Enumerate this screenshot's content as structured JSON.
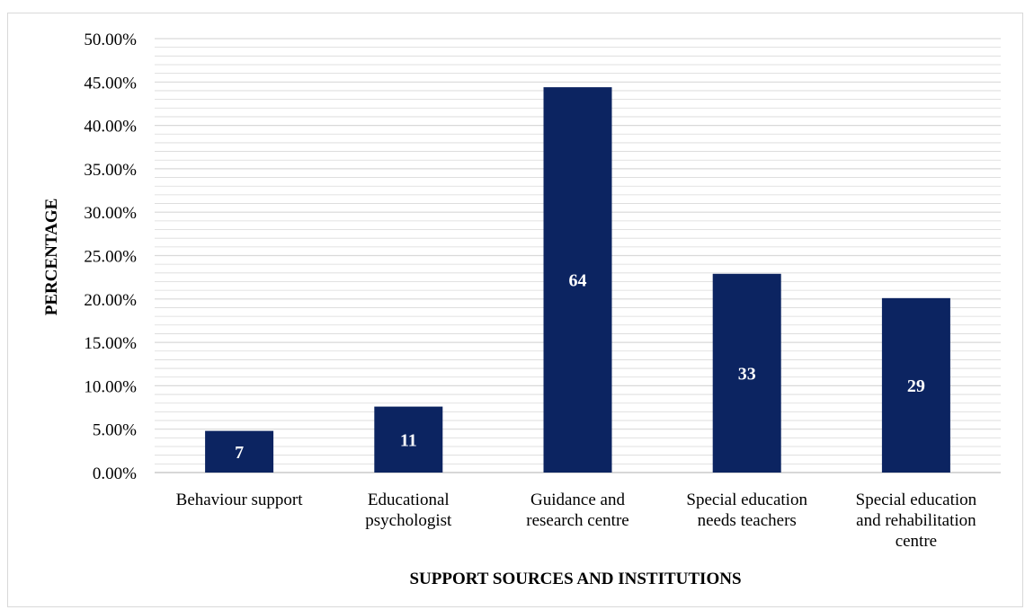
{
  "chart_data": {
    "type": "bar",
    "categories": [
      "Behaviour support",
      "Educational psychologist",
      "Guidance and research centre",
      "Special education needs teachers",
      "Special education and rehabilitation centre"
    ],
    "category_lines": [
      [
        "Behaviour support"
      ],
      [
        "Educational",
        "psychologist"
      ],
      [
        "Guidance and",
        "research centre"
      ],
      [
        "Special education",
        "needs teachers"
      ],
      [
        "Special education",
        "and rehabilitation",
        "centre"
      ]
    ],
    "values": [
      4.8,
      7.6,
      44.4,
      22.9,
      20.1
    ],
    "data_labels": [
      "7",
      "11",
      "64",
      "33",
      "29"
    ],
    "title": "",
    "xlabel": "SUPPORT SOURCES AND INSTITUTIONS",
    "ylabel": "PERCENTAGE",
    "ylim": [
      0,
      50
    ],
    "yticks": [
      "0.00%",
      "5.00%",
      "10.00%",
      "15.00%",
      "20.00%",
      "25.00%",
      "30.00%",
      "35.00%",
      "40.00%",
      "45.00%",
      "50.00%"
    ],
    "grid": true,
    "legend": "none",
    "colors": {
      "bar": "#0c2461",
      "grid": "#d9d9d9",
      "axis": "#bfbfbf"
    }
  }
}
